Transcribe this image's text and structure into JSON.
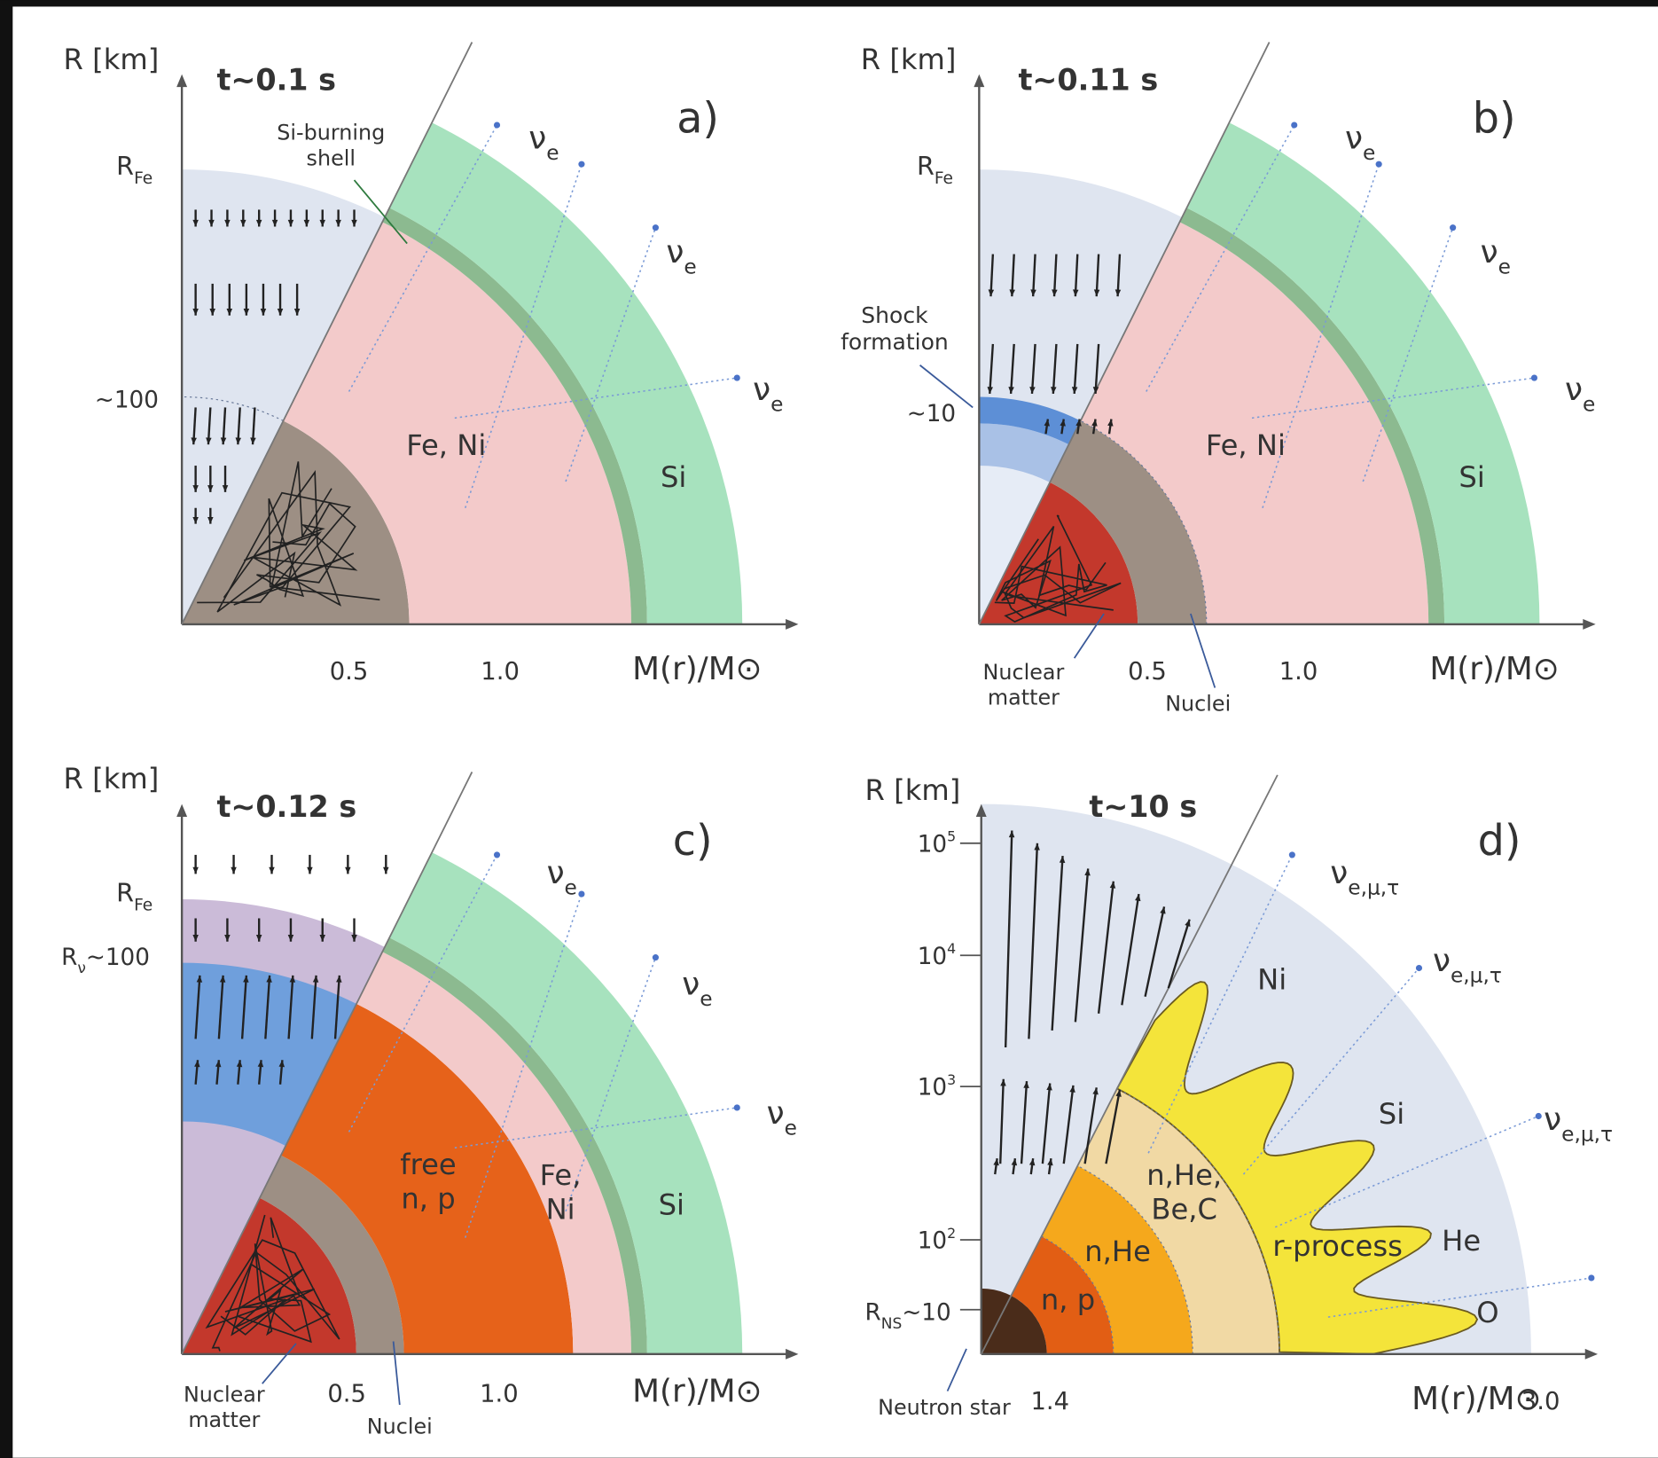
{
  "panels": [
    {
      "label": "a)",
      "time": "t~0.1 s",
      "y_axis": "R [km]",
      "x_axis": "M(r)/M⊙",
      "r_fe": {
        "symbol": "R",
        "sub": "Fe"
      },
      "r_mark": "~100",
      "annotation": [
        "Si-burning",
        "shell"
      ],
      "neutrinos": [
        {
          "symbol": "ν",
          "sub": "e"
        },
        {
          "symbol": "ν",
          "sub": "e"
        },
        {
          "symbol": "ν",
          "sub": "e"
        }
      ],
      "regions": [
        [
          "Fe, Ni"
        ],
        [
          "Si"
        ]
      ],
      "x_ticks": [
        "0.5",
        "1.0"
      ]
    },
    {
      "label": "b)",
      "time": "t~0.11 s",
      "y_axis": "R [km]",
      "x_axis": "M(r)/M⊙",
      "r_fe": {
        "symbol": "R",
        "sub": "Fe"
      },
      "r_mark": "~10",
      "annotation": [
        "Shock",
        "formation"
      ],
      "neutrinos": [
        {
          "symbol": "ν",
          "sub": "e"
        },
        {
          "symbol": "ν",
          "sub": "e"
        },
        {
          "symbol": "ν",
          "sub": "e"
        }
      ],
      "regions": [
        [
          "Fe, Ni"
        ],
        [
          "Si"
        ]
      ],
      "x_ticks": [
        "0.5",
        "1.0"
      ],
      "bottom_labels": [
        [
          "Nuclear",
          "matter"
        ],
        [
          "Nuclei"
        ]
      ]
    },
    {
      "label": "c)",
      "time": "t~0.12 s",
      "y_axis": "R [km]",
      "x_axis": "M(r)/M⊙",
      "r_fe": {
        "symbol": "R",
        "sub": "Fe"
      },
      "r_nu": {
        "symbol": "R",
        "sub": "ν",
        "rest": "~100"
      },
      "neutrinos": [
        {
          "symbol": "ν",
          "sub": "e"
        },
        {
          "symbol": "ν",
          "sub": "e"
        },
        {
          "symbol": "ν",
          "sub": "e"
        }
      ],
      "regions": [
        [
          "free",
          "n, p"
        ],
        [
          "Fe,",
          "Ni"
        ],
        [
          "Si"
        ]
      ],
      "x_ticks": [
        "0.5",
        "1.0"
      ],
      "bottom_labels": [
        [
          "Nuclear",
          "matter"
        ],
        [
          "Nuclei"
        ]
      ]
    },
    {
      "label": "d)",
      "time": "t~10 s",
      "y_axis": "R [km]",
      "x_axis": "M(r)/M⊙",
      "y_ticks": [
        {
          "base": "10",
          "exp": "5"
        },
        {
          "base": "10",
          "exp": "4"
        },
        {
          "base": "10",
          "exp": "3"
        },
        {
          "base": "10",
          "exp": "2"
        }
      ],
      "r_ns": {
        "symbol": "R",
        "sub": "NS",
        "rest": "~10"
      },
      "neutrinos": [
        {
          "symbol": "ν",
          "sub": "e,μ,τ"
        },
        {
          "symbol": "ν",
          "sub": "e,μ,τ"
        },
        {
          "symbol": "ν",
          "sub": "e,μ,τ"
        }
      ],
      "regions": [
        [
          "Ni"
        ],
        [
          "Si"
        ],
        [
          "He"
        ],
        [
          "O"
        ],
        [
          "n,He,",
          "Be,C"
        ],
        [
          "n,He"
        ],
        [
          "n, p"
        ],
        [
          "r-process"
        ]
      ],
      "x_ticks": [
        "1.4",
        "3.0"
      ],
      "bottom_labels": [
        [
          "Neutron star"
        ]
      ]
    }
  ]
}
